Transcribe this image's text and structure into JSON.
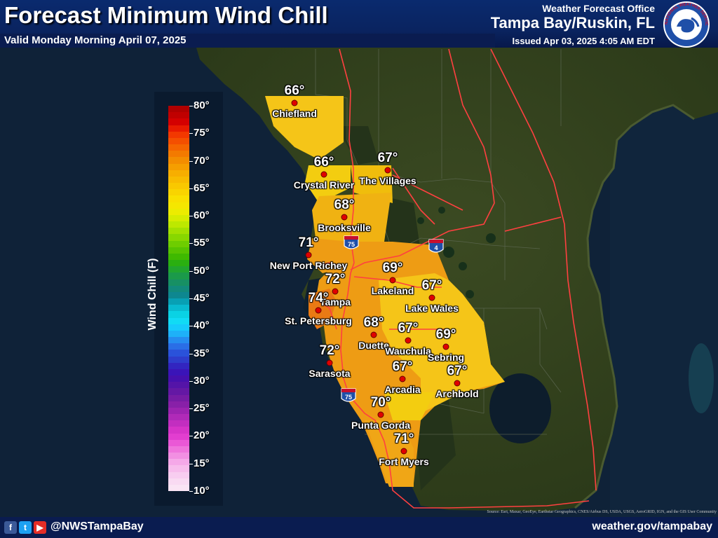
{
  "header": {
    "title": "Forecast Minimum Wind Chill",
    "valid": "Valid Monday Morning April 07, 2025",
    "office_label": "Weather Forecast Office",
    "office": "Tampa Bay/Ruskin, FL",
    "issued": "Issued Apr 03, 2025 4:05 AM EDT",
    "logo_text": "NATIONAL WEATHER SERVICE"
  },
  "legend": {
    "title": "Wind Chill (F)",
    "ticks": [
      "80°",
      "75°",
      "70°",
      "65°",
      "60°",
      "55°",
      "50°",
      "45°",
      "40°",
      "35°",
      "30°",
      "25°",
      "20°",
      "15°",
      "10°"
    ],
    "colors": [
      "#b00000",
      "#c00000",
      "#d40000",
      "#e81a00",
      "#f23800",
      "#f44f00",
      "#f56500",
      "#f37a00",
      "#f38d00",
      "#f59e00",
      "#f7ae00",
      "#f8bb00",
      "#f9c800",
      "#f9d400",
      "#f9e000",
      "#f5e700",
      "#ecec00",
      "#d6ec00",
      "#bde800",
      "#a3e000",
      "#88d700",
      "#6ecd00",
      "#57c300",
      "#3fb900",
      "#2aaf10",
      "#21a52e",
      "#1b9a4a",
      "#179064",
      "#128a7c",
      "#0e8790",
      "#08a0b4",
      "#09bad0",
      "#0ad2e4",
      "#11dbf5",
      "#16cbfc",
      "#1eb1f8",
      "#258df0",
      "#2a6ee6",
      "#2a52da",
      "#2e3dcc",
      "#3225c0",
      "#3a14b8",
      "#4510ae",
      "#5414a8",
      "#6418a4",
      "#761ca4",
      "#8820a8",
      "#9c24b0",
      "#b02ab8",
      "#c22ec0",
      "#d634c8",
      "#e23ed0",
      "#ea58d6",
      "#ef74dc",
      "#f28fe2",
      "#f5a8e8",
      "#f7bcec",
      "#f8cdf0",
      "#f9daf2",
      "#fae4f4"
    ]
  },
  "cities": [
    {
      "name": "Chiefland",
      "temp": "66°"
    },
    {
      "name": "Crystal River",
      "temp": "66°"
    },
    {
      "name": "The Villages",
      "temp": "67°"
    },
    {
      "name": "Brooksville",
      "temp": "68°"
    },
    {
      "name": "New Port Richey",
      "temp": "71°"
    },
    {
      "name": "Tampa",
      "temp": "72°"
    },
    {
      "name": "Lakeland",
      "temp": "69°"
    },
    {
      "name": "Lake Wales",
      "temp": "67°"
    },
    {
      "name": "St. Petersburg",
      "temp": "74°"
    },
    {
      "name": "Duette",
      "temp": "68°"
    },
    {
      "name": "Wauchula",
      "temp": "67°"
    },
    {
      "name": "Sebring",
      "temp": "69°"
    },
    {
      "name": "Sarasota",
      "temp": "72°"
    },
    {
      "name": "Arcadia",
      "temp": "67°"
    },
    {
      "name": "Archbold",
      "temp": "67°"
    },
    {
      "name": "Punta Gorda",
      "temp": "70°"
    },
    {
      "name": "Fort Myers",
      "temp": "71°"
    }
  ],
  "highways": {
    "i75": "75",
    "i4": "4"
  },
  "footer": {
    "handle": "@NWSTampaBay",
    "site": "weather.gov/tampabay",
    "credits": "Source: Esri, Maxar, GeoEye, Earthstar Geographics, CNES/Airbus DS, USDA, USGS, AeroGRID, IGN, and the GIS User Community"
  }
}
